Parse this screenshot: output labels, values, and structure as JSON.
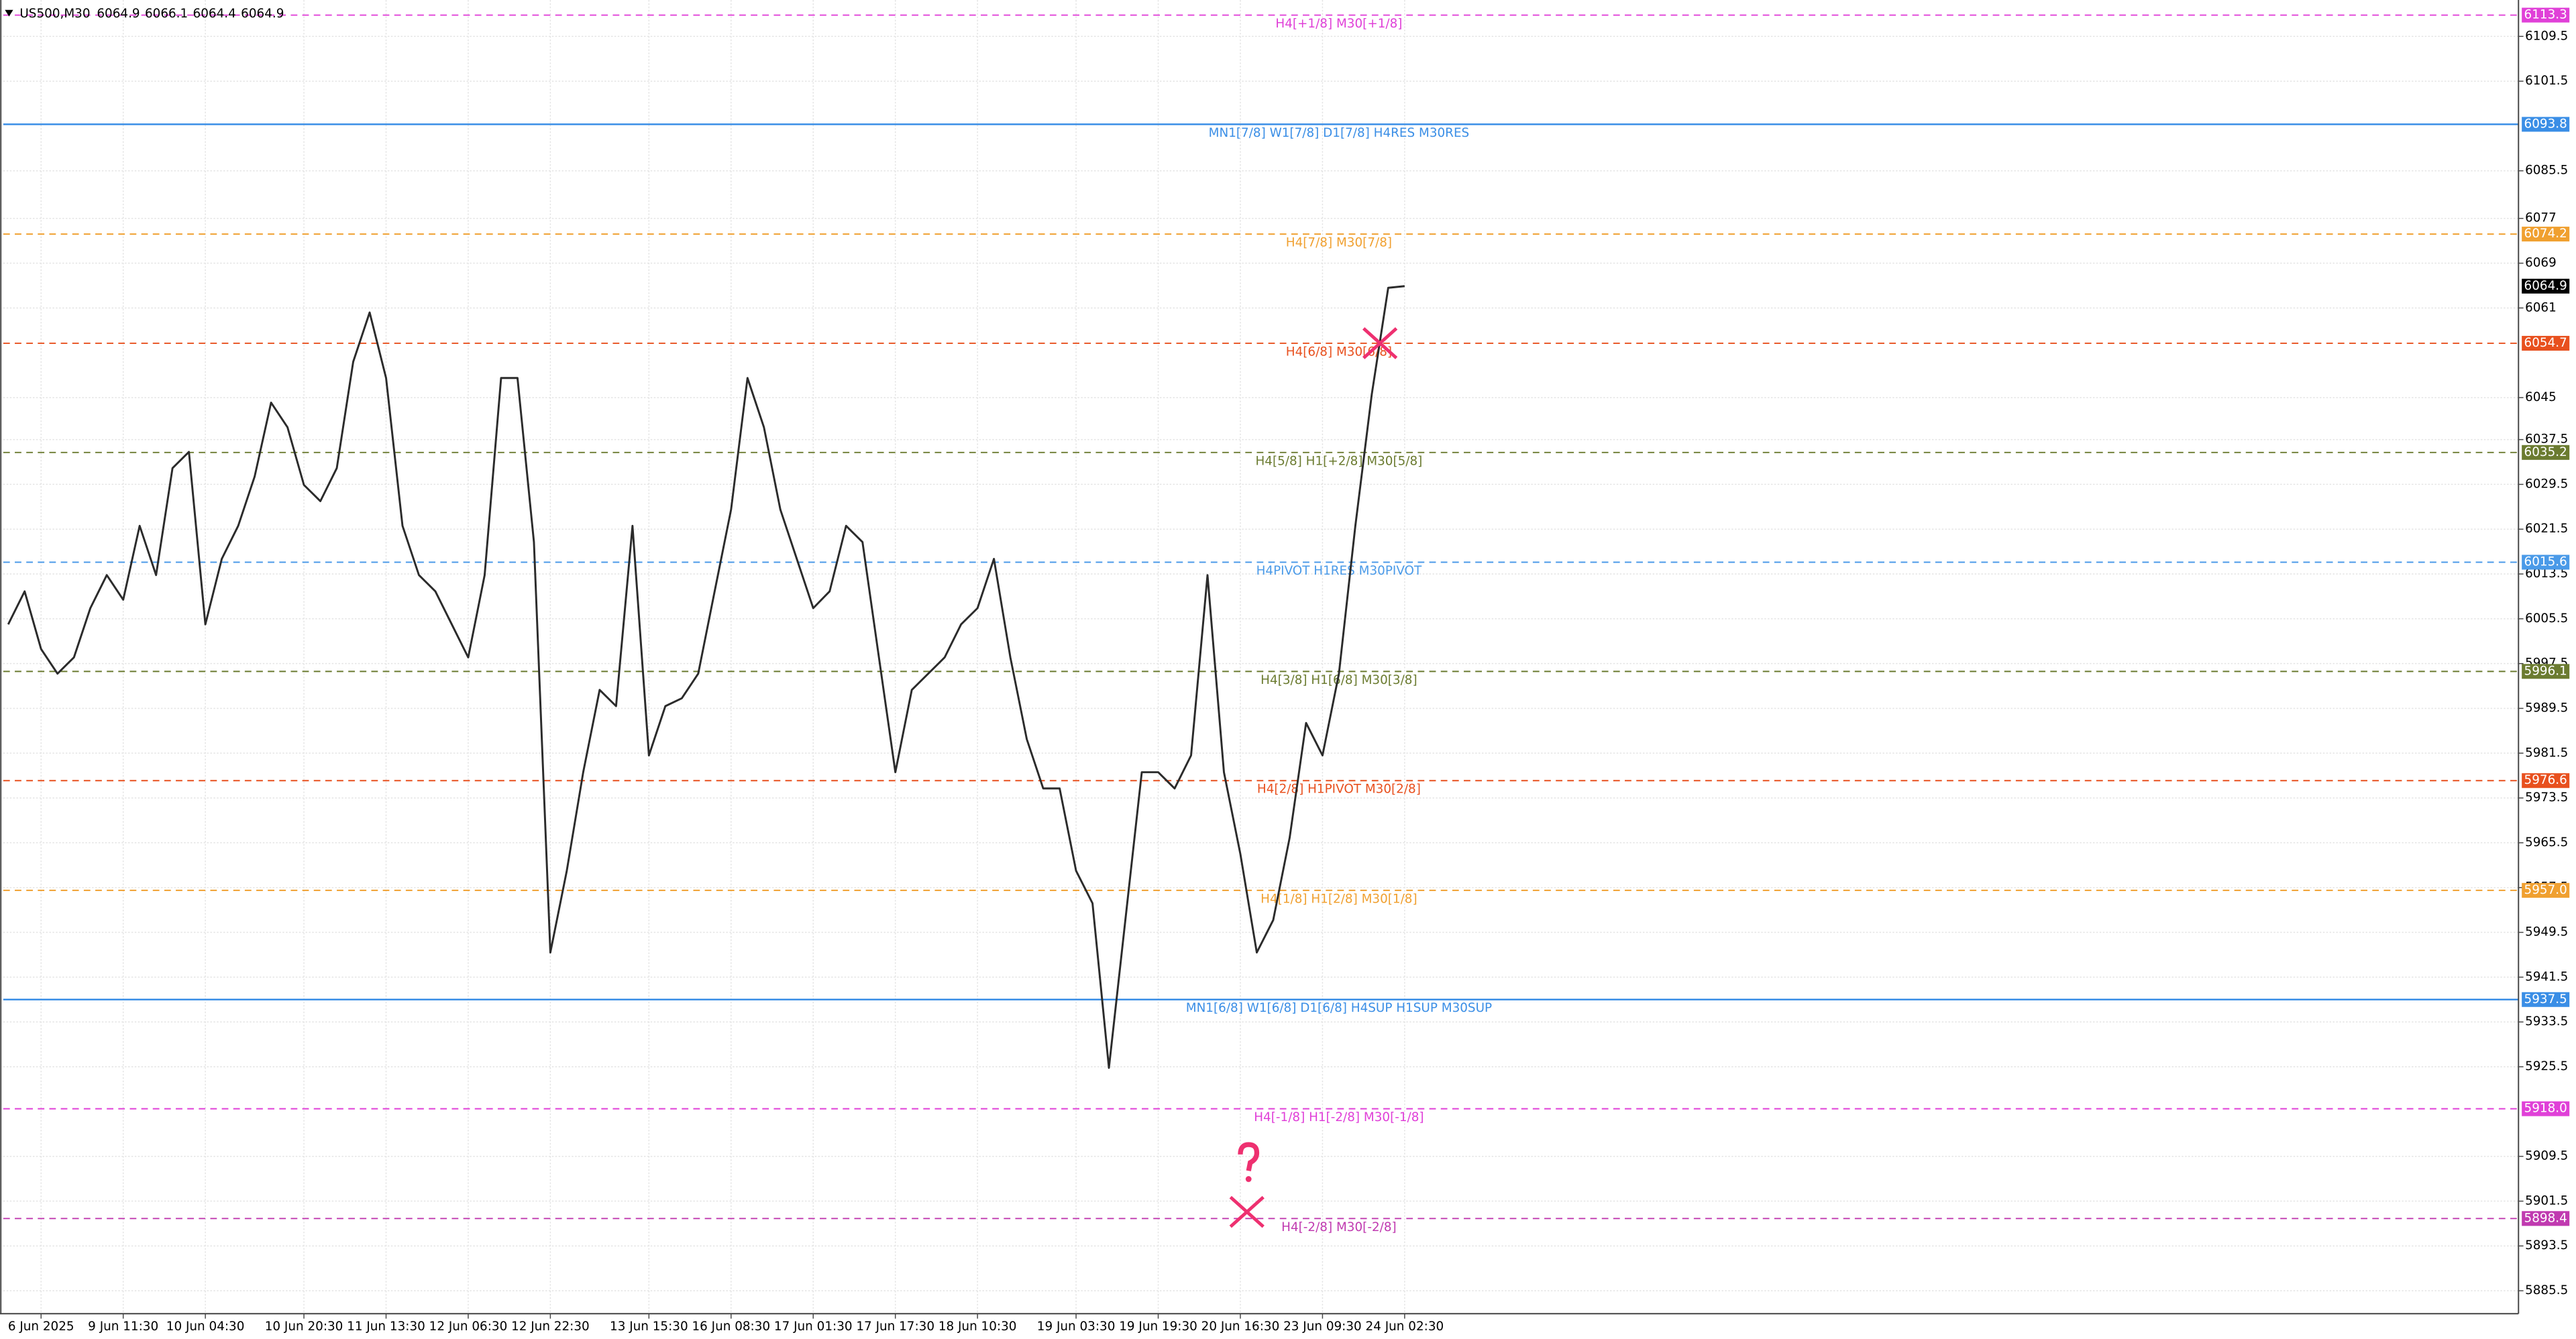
{
  "chart_data": {
    "type": "line",
    "title": "US500,M30",
    "ohlc": [
      6064.9,
      6066.1,
      6064.4,
      6064.9
    ],
    "color": "#2b2b2b",
    "categories": [
      null,
      null,
      "6 Jun 2025",
      null,
      null,
      null,
      null,
      "9 Jun 11:30",
      null,
      null,
      null,
      null,
      "10 Jun 04:30",
      null,
      null,
      null,
      null,
      null,
      "10 Jun 20:30",
      null,
      null,
      null,
      null,
      "11 Jun 13:30",
      null,
      null,
      null,
      null,
      "12 Jun 06:30",
      null,
      null,
      null,
      null,
      "12 Jun 22:30",
      null,
      null,
      null,
      null,
      null,
      "13 Jun 15:30",
      null,
      null,
      null,
      null,
      "16 Jun 08:30",
      null,
      null,
      null,
      null,
      "17 Jun 01:30",
      null,
      null,
      null,
      null,
      "17 Jun 17:30",
      null,
      null,
      null,
      null,
      "18 Jun 10:30",
      null,
      null,
      null,
      null,
      null,
      "19 Jun 03:30",
      null,
      null,
      null,
      null,
      "19 Jun 19:30",
      null,
      null,
      null,
      null,
      "20 Jun 16:30",
      null,
      null,
      null,
      null,
      "23 Jun 09:30",
      null,
      null,
      null,
      null,
      "24 Jun 02:30"
    ],
    "values": [
      6004.5,
      6010.4,
      6000.1,
      5995.7,
      5998.6,
      6007.4,
      6013.3,
      6008.9,
      6022.1,
      6013.3,
      6032.4,
      6035.3,
      6004.5,
      6016.2,
      6022.1,
      6030.9,
      6044.1,
      6039.7,
      6029.4,
      6026.5,
      6032.4,
      6051.4,
      6060.2,
      6048.5,
      6022.1,
      6013.3,
      6010.4,
      6004.5,
      5998.6,
      6013.3,
      6048.5,
      6048.5,
      6019.2,
      5945.9,
      5960.5,
      5978.1,
      5992.8,
      5989.9,
      6022.1,
      5981.1,
      5989.9,
      5991.3,
      5995.7,
      6010.4,
      6025,
      6048.5,
      6039.7,
      6025,
      6016.2,
      6007.4,
      6010.4,
      6022.1,
      6019.2,
      5998.6,
      5978.1,
      5992.8,
      5995.7,
      5998.6,
      6004.5,
      6007.4,
      6016.2,
      5998.6,
      5984,
      5975.2,
      5975.2,
      5960.5,
      5954.7,
      5925.3,
      5951.7,
      5978.1,
      5978.1,
      5975.2,
      5981.1,
      6013.3,
      5978.1,
      5963.5,
      5945.9,
      5951.7,
      5966.4,
      5986.9,
      5981.1,
      5995.7,
      6022.1,
      6045.6,
      6064.6,
      6064.9
    ],
    "ylim": [
      5881.4,
      6116
    ],
    "yticks": [
      5885.5,
      5893.5,
      5901.5,
      5909.5,
      5925.5,
      5933.5,
      5941.5,
      5949.5,
      5957.5,
      5965.5,
      5973.5,
      5981.5,
      5989.5,
      5997.5,
      6005.5,
      6013.5,
      6021.5,
      6029.5,
      6037.5,
      6045,
      6061,
      6069,
      6077,
      6085.5,
      6101.5,
      6109.5
    ],
    "grid": true,
    "last_price": 6064.9,
    "levels": [
      {
        "text": "H4[+1/8] M30[+1/8]",
        "price": 6113.3,
        "color": "#e040d8",
        "style": "dashed"
      },
      {
        "text": "MN1[7/8] W1[7/8] D1[7/8] H4RES M30RES",
        "price": 6093.8,
        "color": "#3a8ee6",
        "style": "solid"
      },
      {
        "text": "H4[7/8] M30[7/8]",
        "price": 6074.2,
        "color": "#f0a030",
        "style": "dashed"
      },
      {
        "text": "H4[6/8] M30[6/8]",
        "price": 6054.7,
        "color": "#e8501e",
        "style": "dashed"
      },
      {
        "text": "H4[5/8] H1[+2/8] M30[5/8]",
        "price": 6035.2,
        "color": "#6b7b30",
        "style": "dashed"
      },
      {
        "text": "H4PIVOT H1RES M30PIVOT",
        "price": 6015.6,
        "color": "#4a9ae8",
        "style": "dashed"
      },
      {
        "text": "H4[3/8] H1[6/8] M30[3/8]",
        "price": 5996.1,
        "color": "#6b7b30",
        "style": "dashed"
      },
      {
        "text": "H4[2/8] H1PIVOT M30[2/8]",
        "price": 5976.6,
        "color": "#e8501e",
        "style": "dashed"
      },
      {
        "text": "H4[1/8] H1[2/8] M30[1/8]",
        "price": 5957,
        "price_label": "5957.0",
        "color": "#f0a030",
        "style": "dashed"
      },
      {
        "text": "MN1[6/8] W1[6/8] D1[6/8] H4SUP H1SUP M30SUP",
        "price": 5937.5,
        "color": "#3a8ee6",
        "style": "solid"
      },
      {
        "text": "H4[-1/8] H1[-2/8] M30[-1/8]",
        "price": 5918,
        "price_label": "5918.0",
        "color": "#e040d8",
        "style": "dashed"
      },
      {
        "text": "H4[-2/8] M30[-2/8]",
        "price": 5898.4,
        "color": "#c03ab0",
        "style": "dashed"
      }
    ]
  }
}
